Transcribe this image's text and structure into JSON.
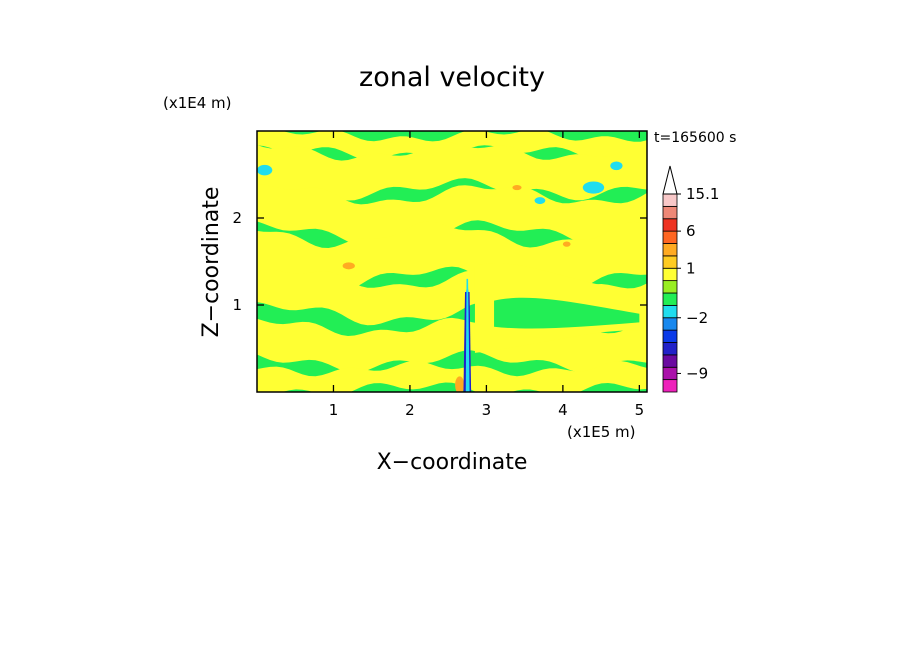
{
  "chart_data": {
    "type": "heatmap",
    "title": "zonal velocity",
    "xlabel": "X−coordinate",
    "ylabel": "Z−coordinate",
    "x_unit": "(x1E5 m)",
    "y_unit": "(x1E4 m)",
    "time_label": "t=165600 s",
    "xlim": [
      0,
      5.1
    ],
    "ylim": [
      0,
      3.0
    ],
    "x_ticks": [
      1,
      2,
      3,
      4,
      5
    ],
    "y_ticks": [
      1,
      2
    ],
    "grid": false,
    "legend": "right",
    "colorbar": {
      "labels": [
        {
          "value": 15.1,
          "text": "15.1"
        },
        {
          "value": 6,
          "text": "6"
        },
        {
          "value": 1,
          "text": "1"
        },
        {
          "value": -2,
          "text": "−2"
        },
        {
          "value": -9,
          "text": "−9"
        }
      ],
      "levels": [
        {
          "color": "#ee22bb",
          "range": [
            -15,
            -10
          ]
        },
        {
          "color": "#aa11aa",
          "range": [
            -10,
            -8
          ]
        },
        {
          "color": "#6a0aa0",
          "range": [
            -8,
            -6
          ]
        },
        {
          "color": "#2222c8",
          "range": [
            -6,
            -4
          ]
        },
        {
          "color": "#0a3ae8",
          "range": [
            -4,
            -3
          ]
        },
        {
          "color": "#1888ee",
          "range": [
            -3,
            -2
          ]
        },
        {
          "color": "#20ddee",
          "range": [
            -2,
            -1
          ]
        },
        {
          "color": "#22ee55",
          "range": [
            -1,
            0
          ]
        },
        {
          "color": "#99ee22",
          "range": [
            0,
            0.5
          ]
        },
        {
          "color": "#ffff33",
          "range": [
            0.5,
            1
          ]
        },
        {
          "color": "#ffcc22",
          "range": [
            1,
            2
          ]
        },
        {
          "color": "#ffaa22",
          "range": [
            2,
            4
          ]
        },
        {
          "color": "#ff6622",
          "range": [
            4,
            6
          ]
        },
        {
          "color": "#ee3322",
          "range": [
            6,
            9
          ]
        },
        {
          "color": "#ee8877",
          "range": [
            9,
            12
          ]
        },
        {
          "color": "#f8c8c8",
          "range": [
            12,
            15.1
          ]
        },
        {
          "color": "#ffffff",
          "range": [
            15.1,
            20
          ],
          "extension": true
        }
      ]
    },
    "field_colors": {
      "background": "#22ee55",
      "positive_band": "#ffff33",
      "negative_patch": "#20ddee",
      "warm_patch": "#ffaa22",
      "jet_core": "#2222c8"
    }
  }
}
